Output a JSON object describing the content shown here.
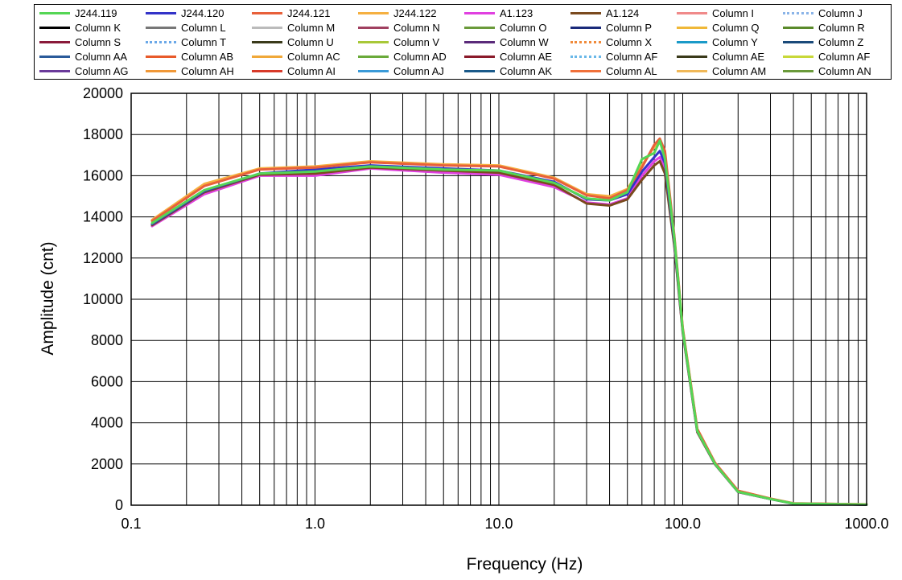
{
  "chart_data": {
    "type": "line",
    "xlabel": "Frequency  (Hz)",
    "ylabel": "Amplitude  (cnt)",
    "x_scale": "log",
    "xlim": [
      0.1,
      1000.0
    ],
    "ylim": [
      0,
      20000
    ],
    "x_ticks": [
      0.1,
      1.0,
      10.0,
      100.0,
      1000.0
    ],
    "x_tick_labels": [
      "0.1",
      "1.0",
      "10.0",
      "100.0",
      "1000.0"
    ],
    "y_ticks": [
      0,
      2000,
      4000,
      6000,
      8000,
      10000,
      12000,
      14000,
      16000,
      18000,
      20000
    ],
    "y_tick_labels": [
      "0",
      "2000",
      "4000",
      "6000",
      "8000",
      "10000",
      "12000",
      "14000",
      "16000",
      "18000",
      "20000"
    ],
    "grid": true,
    "legend_position": "top",
    "x": [
      0.13,
      0.25,
      0.5,
      1.0,
      2.0,
      5.0,
      10.0,
      20.0,
      30.0,
      40.0,
      50.0,
      60.0,
      70.0,
      75.0,
      80.0,
      90.0,
      100.0,
      120.0,
      150.0,
      200.0,
      300.0,
      400.0,
      1000.0
    ],
    "series": [
      {
        "name": "J244.119",
        "color": "#55d655",
        "values": [
          13700,
          15300,
          16100,
          16200,
          16450,
          16300,
          16250,
          15650,
          14900,
          14800,
          15200,
          16800,
          17100,
          17700,
          16800,
          13000,
          8500,
          3600,
          2000,
          650,
          300,
          80,
          30
        ]
      },
      {
        "name": "J244.120",
        "color": "#3333c8",
        "values": [
          13650,
          15250,
          16100,
          16300,
          16500,
          16350,
          16250,
          15700,
          14850,
          14800,
          15100,
          16200,
          16900,
          17200,
          16600,
          12800,
          8500,
          3600,
          2000,
          650,
          300,
          80,
          30
        ]
      },
      {
        "name": "J244.121",
        "color": "#e8603a",
        "values": [
          13800,
          15500,
          16300,
          16400,
          16650,
          16500,
          16450,
          15850,
          15050,
          14900,
          15300,
          16400,
          17500,
          17800,
          17200,
          13100,
          8600,
          3700,
          2050,
          700,
          320,
          90,
          40
        ]
      },
      {
        "name": "J244.122",
        "color": "#f5b041",
        "values": [
          13850,
          15600,
          16350,
          16450,
          16700,
          16550,
          16500,
          15900,
          15100,
          15000,
          15350,
          16500,
          17400,
          17650,
          17000,
          13000,
          8600,
          3700,
          2050,
          700,
          320,
          90,
          40
        ]
      },
      {
        "name": "A1.123",
        "color": "#e040e0",
        "values": [
          13550,
          15100,
          16000,
          16000,
          16350,
          16150,
          16050,
          15450,
          14700,
          14600,
          14900,
          16000,
          16700,
          16900,
          16300,
          12700,
          8400,
          3550,
          1980,
          640,
          300,
          80,
          30
        ]
      },
      {
        "name": "A1.124",
        "color": "#7a4a1e",
        "values": [
          13600,
          15200,
          16050,
          16100,
          16400,
          16250,
          16150,
          15550,
          14650,
          14550,
          14850,
          15800,
          16500,
          16700,
          16100,
          12600,
          8400,
          3550,
          1980,
          640,
          300,
          80,
          30
        ]
      }
    ]
  },
  "legend": {
    "items": [
      {
        "label": "J244.119",
        "color": "#55d655",
        "style": "solid"
      },
      {
        "label": "J244.120",
        "color": "#3333c8",
        "style": "solid"
      },
      {
        "label": "J244.121",
        "color": "#e8603a",
        "style": "solid"
      },
      {
        "label": "J244.122",
        "color": "#f5b041",
        "style": "solid"
      },
      {
        "label": "A1.123",
        "color": "#e040e0",
        "style": "solid"
      },
      {
        "label": "A1.124",
        "color": "#7a4a1e",
        "style": "solid"
      },
      {
        "label": "Column I",
        "color": "#f08a8a",
        "style": "solid"
      },
      {
        "label": "Column J",
        "color": "#8ab4e8",
        "style": "dotted"
      },
      {
        "label": "Column K",
        "color": "#000000",
        "style": "solid"
      },
      {
        "label": "Column L",
        "color": "#777777",
        "style": "solid"
      },
      {
        "label": "Column M",
        "color": "#bbbbbb",
        "style": "solid"
      },
      {
        "label": "Column N",
        "color": "#a04060",
        "style": "solid"
      },
      {
        "label": "Column O",
        "color": "#6a9a3a",
        "style": "solid"
      },
      {
        "label": "Column P",
        "color": "#1a2a7a",
        "style": "solid"
      },
      {
        "label": "Column Q",
        "color": "#f0b838",
        "style": "solid"
      },
      {
        "label": "Column R",
        "color": "#5a8a2a",
        "style": "solid"
      },
      {
        "label": "Column S",
        "color": "#8a1a3a",
        "style": "solid"
      },
      {
        "label": "Column T",
        "color": "#6aa8e8",
        "style": "dotted"
      },
      {
        "label": "Column U",
        "color": "#3a3a1a",
        "style": "solid"
      },
      {
        "label": "Column V",
        "color": "#a8c838",
        "style": "solid"
      },
      {
        "label": "Column W",
        "color": "#5a2a7a",
        "style": "solid"
      },
      {
        "label": "Column X",
        "color": "#f08a3a",
        "style": "dotted"
      },
      {
        "label": "Column Y",
        "color": "#1a9ac8",
        "style": "solid"
      },
      {
        "label": "Column Z",
        "color": "#1a4a7a",
        "style": "solid"
      },
      {
        "label": "Column AA",
        "color": "#2a5a9a",
        "style": "solid"
      },
      {
        "label": "Column AB",
        "color": "#e85a2a",
        "style": "solid"
      },
      {
        "label": "Column AC",
        "color": "#f0a838",
        "style": "solid"
      },
      {
        "label": "Column AD",
        "color": "#6aaa3a",
        "style": "solid"
      },
      {
        "label": "Column AE",
        "color": "#8a1a2a",
        "style": "solid"
      },
      {
        "label": "Column AF",
        "color": "#6ab8e8",
        "style": "dotted"
      },
      {
        "label": "Column AE",
        "color": "#3a3a1a",
        "style": "solid"
      },
      {
        "label": "Column AF",
        "color": "#c8d838",
        "style": "solid"
      },
      {
        "label": "Column AG",
        "color": "#6a3a9a",
        "style": "solid"
      },
      {
        "label": "Column AH",
        "color": "#f09838",
        "style": "solid"
      },
      {
        "label": "Column AI",
        "color": "#d83a2a",
        "style": "solid"
      },
      {
        "label": "Column AJ",
        "color": "#3a9ad8",
        "style": "solid"
      },
      {
        "label": "Column AK",
        "color": "#1a5a8a",
        "style": "solid"
      },
      {
        "label": "Column AL",
        "color": "#f0703a",
        "style": "solid"
      },
      {
        "label": "Column AM",
        "color": "#f0b858",
        "style": "solid"
      },
      {
        "label": "Column AN",
        "color": "#6a9a3a",
        "style": "solid"
      }
    ]
  }
}
